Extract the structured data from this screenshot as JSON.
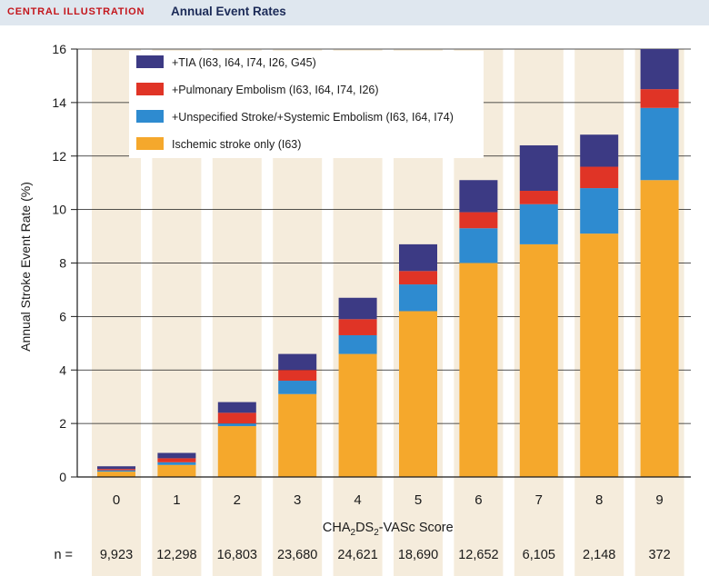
{
  "header": {
    "label": "CENTRAL ILLUSTRATION",
    "title": "Annual Event Rates"
  },
  "chart_data": {
    "type": "bar",
    "stacked": true,
    "title": "Annual Event Rates",
    "ylabel": "Annual Stroke Event Rate (%)",
    "xlabel": "CHA2DS2-VASc Score",
    "xlabel_parts": [
      "CHA",
      "2",
      "DS",
      "2",
      "-VASc Score"
    ],
    "ylim": [
      0,
      16
    ],
    "yticks": [
      0,
      2,
      4,
      6,
      8,
      10,
      12,
      14,
      16
    ],
    "grid": true,
    "legend_position": "top-left",
    "categories": [
      "0",
      "1",
      "2",
      "3",
      "4",
      "5",
      "6",
      "7",
      "8",
      "9"
    ],
    "series": [
      {
        "name": "Ischemic stroke only (I63)",
        "color": "#f5a82c",
        "values": [
          0.2,
          0.45,
          1.9,
          3.1,
          4.6,
          6.2,
          8.0,
          8.7,
          9.1,
          11.1
        ]
      },
      {
        "name": "+Unspecified Stroke/+Systemic Embolism (I63, I64, I74)",
        "color": "#2e8bd0",
        "values": [
          0.05,
          0.1,
          0.1,
          0.5,
          0.7,
          1.0,
          1.3,
          1.5,
          1.7,
          2.7
        ]
      },
      {
        "name": "+Pulmonary Embolism (I63, I64, I74, I26)",
        "color": "#e03426",
        "values": [
          0.05,
          0.15,
          0.4,
          0.4,
          0.6,
          0.5,
          0.6,
          0.5,
          0.8,
          0.7
        ]
      },
      {
        "name": "+TIA (I63, I64, I74, I26, G45)",
        "color": "#3c3a84",
        "values": [
          0.1,
          0.2,
          0.4,
          0.6,
          0.8,
          1.0,
          1.2,
          1.7,
          1.2,
          1.5
        ]
      }
    ],
    "legend_order": [
      "+TIA (I63, I64, I74, I26, G45)",
      "+Pulmonary Embolism (I63, I64, I74, I26)",
      "+Unspecified Stroke/+Systemic Embolism (I63, I64, I74)",
      "Ischemic stroke only (I63)"
    ],
    "n_label": "n =",
    "n_values": [
      "9,923",
      "12,298",
      "16,803",
      "23,680",
      "24,621",
      "18,690",
      "12,652",
      "6,105",
      "2,148",
      "372"
    ],
    "colors": {
      "column_background": "#f5ecdc",
      "grid": "#1a1a1a",
      "text": "#1a1a1a"
    }
  }
}
